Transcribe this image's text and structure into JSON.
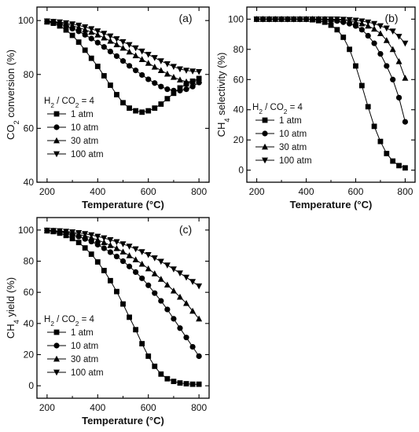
{
  "chart_data": [
    {
      "type": "line",
      "panel_label": "(a)",
      "title": "",
      "xlabel": "Temperature (°C)",
      "ylabel_parts": [
        "CO",
        "2",
        " conversion (%)"
      ],
      "xlim": [
        160,
        840
      ],
      "ylim": [
        40,
        105
      ],
      "xticks": [
        200,
        400,
        600,
        800
      ],
      "yticks": [
        40,
        60,
        80,
        100
      ],
      "legend_title_parts": [
        "H",
        "2",
        " / CO",
        "2",
        " = 4"
      ],
      "x": [
        200,
        225,
        250,
        275,
        300,
        325,
        350,
        375,
        400,
        425,
        450,
        475,
        500,
        525,
        550,
        575,
        600,
        625,
        650,
        675,
        700,
        725,
        750,
        775,
        800
      ],
      "series": [
        {
          "name": "1 atm",
          "marker": "square",
          "values": [
            99.5,
            99.0,
            98.0,
            96.5,
            94.5,
            92.0,
            89.0,
            86.0,
            83.0,
            79.5,
            76.0,
            72.5,
            69.5,
            67.5,
            66.5,
            66.0,
            66.5,
            67.5,
            69.0,
            71.0,
            73.0,
            75.0,
            76.5,
            77.5,
            78.5
          ]
        },
        {
          "name": "10 atm",
          "marker": "circle",
          "values": [
            99.6,
            99.3,
            98.8,
            98.0,
            97.0,
            96.0,
            94.7,
            93.3,
            91.8,
            90.2,
            88.5,
            86.8,
            85.0,
            83.2,
            81.5,
            79.8,
            78.2,
            76.8,
            75.5,
            74.5,
            74.0,
            74.0,
            74.5,
            75.5,
            77.0
          ]
        },
        {
          "name": "30 atm",
          "marker": "triangle-up",
          "values": [
            99.7,
            99.5,
            99.2,
            98.7,
            98.1,
            97.4,
            96.6,
            95.7,
            94.7,
            93.6,
            92.4,
            91.1,
            89.8,
            88.4,
            87.0,
            85.6,
            84.2,
            82.8,
            81.5,
            80.2,
            79.0,
            78.0,
            77.3,
            77.3,
            77.8
          ]
        },
        {
          "name": "100 atm",
          "marker": "triangle-down",
          "values": [
            99.8,
            99.6,
            99.4,
            99.1,
            98.7,
            98.2,
            97.6,
            96.9,
            96.1,
            95.2,
            94.2,
            93.2,
            92.1,
            91.0,
            89.8,
            88.6,
            87.4,
            86.2,
            85.0,
            83.9,
            82.9,
            82.0,
            81.5,
            81.2,
            81.0
          ]
        }
      ]
    },
    {
      "type": "line",
      "panel_label": "(b)",
      "title": "",
      "xlabel": "Temperature (°C)",
      "ylabel_parts": [
        "CH",
        "4",
        " selectivity (%)"
      ],
      "xlim": [
        160,
        840
      ],
      "ylim": [
        -8,
        108
      ],
      "xticks": [
        200,
        400,
        600,
        800
      ],
      "yticks": [
        0,
        20,
        40,
        60,
        80,
        100
      ],
      "legend_title_parts": [
        "H",
        "2",
        " / CO",
        "2",
        " = 4"
      ],
      "x": [
        200,
        225,
        250,
        275,
        300,
        325,
        350,
        375,
        400,
        425,
        450,
        475,
        500,
        525,
        550,
        575,
        600,
        625,
        650,
        675,
        700,
        725,
        750,
        775,
        800
      ],
      "series": [
        {
          "name": "1 atm",
          "marker": "square",
          "values": [
            100,
            100,
            100,
            100,
            100,
            100,
            100,
            100,
            100,
            99.6,
            99,
            98,
            96,
            93,
            88,
            80,
            69,
            56,
            42,
            29,
            19,
            11,
            6,
            3,
            1.5
          ]
        },
        {
          "name": "10 atm",
          "marker": "circle",
          "values": [
            100,
            100,
            100,
            100,
            100,
            100,
            100,
            100,
            100,
            100,
            100,
            99.7,
            99.3,
            98.8,
            98,
            97,
            95.5,
            93,
            89,
            84,
            77,
            69,
            60,
            48,
            32
          ]
        },
        {
          "name": "30 atm",
          "marker": "triangle-up",
          "values": [
            100,
            100,
            100,
            100,
            100,
            100,
            100,
            100,
            100,
            100,
            100,
            100,
            99.8,
            99.6,
            99.3,
            98.8,
            98,
            97,
            95.5,
            93.5,
            90.5,
            86,
            80,
            72,
            61
          ]
        },
        {
          "name": "100 atm",
          "marker": "triangle-down",
          "values": [
            100,
            100,
            100,
            100,
            100,
            100,
            100,
            100,
            100,
            100,
            100,
            100,
            100,
            100,
            99.8,
            99.6,
            99.2,
            98.7,
            98,
            97,
            95.5,
            94,
            92,
            88.5,
            84
          ]
        }
      ]
    },
    {
      "type": "line",
      "panel_label": "(c)",
      "title": "",
      "xlabel": "Temperature (°C)",
      "ylabel_parts": [
        "CH",
        "4",
        " yield (%)"
      ],
      "xlim": [
        160,
        840
      ],
      "ylim": [
        -8,
        108
      ],
      "xticks": [
        200,
        400,
        600,
        800
      ],
      "yticks": [
        0,
        20,
        40,
        60,
        80,
        100
      ],
      "legend_title_parts": [
        "H",
        "2",
        " / CO",
        "2",
        " = 4"
      ],
      "x": [
        200,
        225,
        250,
        275,
        300,
        325,
        350,
        375,
        400,
        425,
        450,
        475,
        500,
        525,
        550,
        575,
        600,
        625,
        650,
        675,
        700,
        725,
        750,
        775,
        800
      ],
      "series": [
        {
          "name": "1 atm",
          "marker": "square",
          "values": [
            99.5,
            99,
            98,
            96.5,
            94.5,
            92,
            88.5,
            84.5,
            79.5,
            74,
            67.5,
            60.5,
            52.5,
            44,
            36,
            27,
            19,
            12.5,
            7.5,
            4.5,
            2.8,
            1.8,
            1.3,
            1,
            1
          ]
        },
        {
          "name": "10 atm",
          "marker": "circle",
          "values": [
            99.6,
            99.3,
            98.8,
            98,
            97,
            95.8,
            94.3,
            92.6,
            90.6,
            88.3,
            85.8,
            83,
            80,
            76.6,
            73,
            69,
            64.5,
            59.5,
            54.5,
            49,
            43,
            37,
            31,
            25,
            19
          ]
        },
        {
          "name": "30 atm",
          "marker": "triangle-up",
          "values": [
            99.7,
            99.5,
            99.2,
            98.7,
            98,
            97.2,
            96.2,
            95,
            93.6,
            92,
            90.2,
            88.2,
            86,
            83.6,
            81,
            78.2,
            75.2,
            72,
            68.5,
            64.8,
            61,
            57,
            53,
            48,
            43
          ]
        },
        {
          "name": "100 atm",
          "marker": "triangle-down",
          "values": [
            99.8,
            99.6,
            99.4,
            99.1,
            98.7,
            98.2,
            97.6,
            96.8,
            95.9,
            94.9,
            93.7,
            92.4,
            91,
            89.5,
            87.8,
            86,
            84.1,
            82,
            79.8,
            77.4,
            74.9,
            72.3,
            69.6,
            66.8,
            64
          ]
        }
      ]
    }
  ],
  "legend_labels": [
    "1 atm",
    "10 atm",
    "30 atm",
    "100 atm"
  ]
}
